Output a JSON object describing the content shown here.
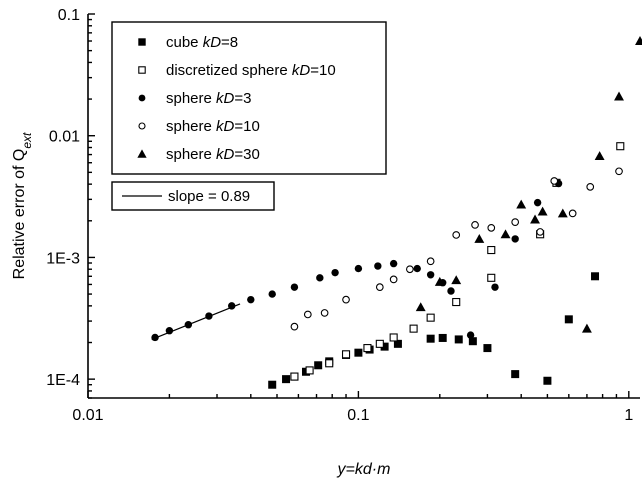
{
  "chart_data": {
    "type": "scatter",
    "title": "",
    "xlabel_parts": [
      {
        "text": "y",
        "italic": true
      },
      {
        "text": "=",
        "italic": true
      },
      {
        "text": "kd",
        "italic": true
      },
      {
        "text": "·",
        "italic": true
      },
      {
        "text": "m",
        "italic": true
      }
    ],
    "ylabel_parts": [
      {
        "text": "Relative error of Q",
        "italic": false,
        "sub": false
      },
      {
        "text": "ext",
        "italic": true,
        "sub": true
      }
    ],
    "x_scale": "log",
    "y_scale": "log",
    "xlim": [
      0.01,
      1.1
    ],
    "ylim": [
      7e-05,
      0.1
    ],
    "x_ticks": [
      {
        "value": 0.01,
        "label": "0.01"
      },
      {
        "value": 0.1,
        "label": "0.1"
      },
      {
        "value": 1,
        "label": "1"
      }
    ],
    "y_ticks": [
      {
        "value": 0.0001,
        "label": "1E-4"
      },
      {
        "value": 0.001,
        "label": "1E-3"
      },
      {
        "value": 0.01,
        "label": "0.01"
      },
      {
        "value": 0.1,
        "label": "0.1"
      }
    ],
    "grid": false,
    "legend_position": "top-left",
    "series": [
      {
        "name_parts": [
          {
            "text": "cube ",
            "italic": false
          },
          {
            "text": "kD",
            "italic": true
          },
          {
            "text": "=8",
            "italic": false
          }
        ],
        "marker": "square-filled",
        "points": [
          [
            0.048,
            9e-05
          ],
          [
            0.054,
            0.0001
          ],
          [
            0.058,
            0.000105
          ],
          [
            0.064,
            0.000115
          ],
          [
            0.071,
            0.00013
          ],
          [
            0.078,
            0.00014
          ],
          [
            0.09,
            0.000158
          ],
          [
            0.1,
            0.000165
          ],
          [
            0.11,
            0.000175
          ],
          [
            0.125,
            0.000185
          ],
          [
            0.14,
            0.000195
          ],
          [
            0.185,
            0.000215
          ],
          [
            0.205,
            0.000218
          ],
          [
            0.235,
            0.000212
          ],
          [
            0.265,
            0.000205
          ],
          [
            0.3,
            0.00018
          ],
          [
            0.38,
            0.00011
          ],
          [
            0.5,
            9.7e-05
          ],
          [
            0.6,
            0.00031
          ],
          [
            0.75,
            0.0007
          ]
        ]
      },
      {
        "name_parts": [
          {
            "text": "discretized sphere ",
            "italic": false
          },
          {
            "text": "kD",
            "italic": true
          },
          {
            "text": "=10",
            "italic": false
          }
        ],
        "marker": "square-open",
        "points": [
          [
            0.058,
            0.000105
          ],
          [
            0.066,
            0.000118
          ],
          [
            0.078,
            0.000135
          ],
          [
            0.09,
            0.00016
          ],
          [
            0.108,
            0.00018
          ],
          [
            0.12,
            0.000195
          ],
          [
            0.135,
            0.00022
          ],
          [
            0.16,
            0.00026
          ],
          [
            0.185,
            0.00032
          ],
          [
            0.23,
            0.00043
          ],
          [
            0.31,
            0.00068
          ],
          [
            0.31,
            0.00115
          ],
          [
            0.47,
            0.00155
          ],
          [
            0.54,
            0.0041
          ],
          [
            0.93,
            0.0082
          ]
        ]
      },
      {
        "name_parts": [
          {
            "text": "sphere ",
            "italic": false
          },
          {
            "text": "kD",
            "italic": true
          },
          {
            "text": "=3",
            "italic": false
          }
        ],
        "marker": "circle-filled",
        "points": [
          [
            0.0177,
            0.00022
          ],
          [
            0.02,
            0.00025
          ],
          [
            0.0235,
            0.00028
          ],
          [
            0.028,
            0.00033
          ],
          [
            0.034,
            0.0004
          ],
          [
            0.04,
            0.00045
          ],
          [
            0.048,
            0.0005
          ],
          [
            0.058,
            0.00057
          ],
          [
            0.072,
            0.00068
          ],
          [
            0.082,
            0.00075
          ],
          [
            0.1,
            0.00081
          ],
          [
            0.118,
            0.00085
          ],
          [
            0.135,
            0.00089
          ],
          [
            0.165,
            0.00081
          ],
          [
            0.185,
            0.00072
          ],
          [
            0.205,
            0.00062
          ],
          [
            0.22,
            0.00053
          ],
          [
            0.26,
            0.00023
          ],
          [
            0.32,
            0.00057
          ],
          [
            0.38,
            0.00142
          ],
          [
            0.46,
            0.00282
          ],
          [
            0.55,
            0.00405
          ]
        ]
      },
      {
        "name_parts": [
          {
            "text": "sphere ",
            "italic": false
          },
          {
            "text": "kD",
            "italic": true
          },
          {
            "text": "=10",
            "italic": false
          }
        ],
        "marker": "circle-open",
        "points": [
          [
            0.058,
            0.00027
          ],
          [
            0.065,
            0.00034
          ],
          [
            0.075,
            0.00035
          ],
          [
            0.09,
            0.00045
          ],
          [
            0.12,
            0.00057
          ],
          [
            0.135,
            0.00066
          ],
          [
            0.155,
            0.0008
          ],
          [
            0.185,
            0.00093
          ],
          [
            0.23,
            0.00153
          ],
          [
            0.27,
            0.00185
          ],
          [
            0.31,
            0.00175
          ],
          [
            0.38,
            0.00195
          ],
          [
            0.47,
            0.00162
          ],
          [
            0.53,
            0.00425
          ],
          [
            0.62,
            0.0023
          ],
          [
            0.72,
            0.0038
          ],
          [
            0.92,
            0.0051
          ]
        ]
      },
      {
        "name_parts": [
          {
            "text": "sphere ",
            "italic": false
          },
          {
            "text": "kD",
            "italic": true
          },
          {
            "text": "=30",
            "italic": false
          }
        ],
        "marker": "triangle-filled",
        "points": [
          [
            0.17,
            0.00039
          ],
          [
            0.2,
            0.00063
          ],
          [
            0.23,
            0.00065
          ],
          [
            0.28,
            0.00142
          ],
          [
            0.35,
            0.00155
          ],
          [
            0.4,
            0.00272
          ],
          [
            0.45,
            0.00205
          ],
          [
            0.48,
            0.00238
          ],
          [
            0.57,
            0.0023
          ],
          [
            0.7,
            0.00026
          ],
          [
            0.78,
            0.0068
          ],
          [
            0.92,
            0.021
          ],
          [
            1.1,
            0.06
          ]
        ]
      }
    ],
    "fit_line": {
      "label": "slope = 0.89",
      "slope": 0.89,
      "from": [
        0.0172,
        0.000212
      ],
      "to": [
        0.0365,
        0.000415
      ]
    }
  }
}
